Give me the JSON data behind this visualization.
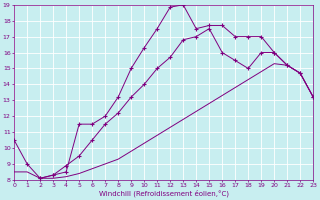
{
  "xlabel": "Windchill (Refroidissement éolien,°C)",
  "bg_color": "#c8eef0",
  "line_color": "#800080",
  "grid_color": "#ffffff",
  "x_min": 0,
  "x_max": 23,
  "y_min": 8,
  "y_max": 19,
  "line1_x": [
    0,
    1,
    2,
    3,
    4,
    5,
    6,
    7,
    8,
    9,
    10,
    11,
    12,
    13,
    14,
    15,
    16,
    17,
    18,
    19,
    20,
    21,
    22,
    23
  ],
  "line1_y": [
    10.5,
    9.0,
    8.1,
    8.3,
    8.5,
    11.5,
    11.5,
    12.0,
    13.2,
    15.0,
    16.3,
    17.5,
    18.85,
    19.0,
    17.5,
    17.7,
    17.7,
    17.0,
    17.0,
    17.0,
    16.0,
    15.2,
    14.7,
    13.2
  ],
  "line2_x": [
    2,
    3,
    4,
    5,
    6,
    7,
    8,
    9,
    10,
    11,
    12,
    13,
    14,
    15,
    16,
    17,
    18,
    19,
    20,
    21,
    22,
    23
  ],
  "line2_y": [
    8.1,
    8.3,
    8.9,
    9.5,
    10.5,
    11.5,
    12.2,
    13.2,
    14.0,
    15.0,
    15.7,
    16.8,
    17.0,
    17.5,
    16.0,
    15.5,
    15.0,
    16.0,
    16.0,
    15.2,
    14.7,
    13.2
  ],
  "line3_x": [
    0,
    1,
    2,
    3,
    4,
    5,
    6,
    7,
    8,
    9,
    10,
    11,
    12,
    13,
    14,
    15,
    16,
    17,
    18,
    19,
    20,
    21,
    22,
    23
  ],
  "line3_y": [
    8.5,
    8.5,
    8.1,
    8.1,
    8.2,
    8.4,
    8.7,
    9.0,
    9.3,
    9.8,
    10.3,
    10.8,
    11.3,
    11.8,
    12.3,
    12.8,
    13.3,
    13.8,
    14.3,
    14.8,
    15.3,
    15.2,
    14.7,
    13.2
  ]
}
